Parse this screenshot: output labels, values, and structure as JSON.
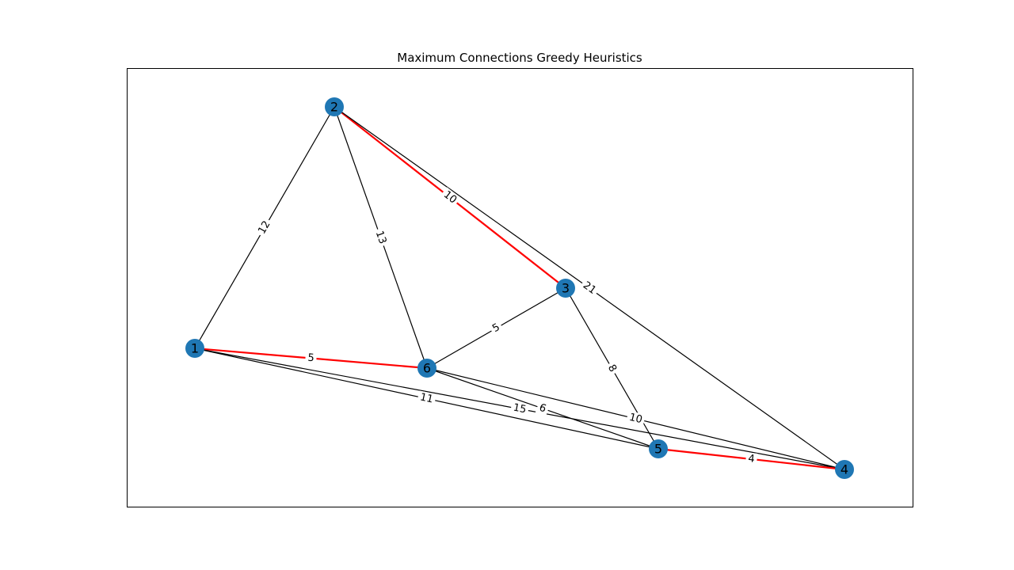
{
  "title": "Maximum Connections Greedy Heuristics",
  "colors": {
    "node_fill": "#1f77b4",
    "edge_default": "#000000",
    "edge_highlight": "#ff0000",
    "frame": "#000000",
    "background": "#ffffff"
  },
  "nodes": [
    {
      "id": "1",
      "label": "1"
    },
    {
      "id": "2",
      "label": "2"
    },
    {
      "id": "3",
      "label": "3"
    },
    {
      "id": "4",
      "label": "4"
    },
    {
      "id": "5",
      "label": "5"
    },
    {
      "id": "6",
      "label": "6"
    }
  ],
  "edges": [
    {
      "source": "1",
      "target": "2",
      "weight": "12",
      "highlighted": false
    },
    {
      "source": "1",
      "target": "6",
      "weight": "5",
      "highlighted": true
    },
    {
      "source": "1",
      "target": "5",
      "weight": "11",
      "highlighted": false
    },
    {
      "source": "1",
      "target": "4",
      "weight": "15",
      "highlighted": false
    },
    {
      "source": "2",
      "target": "6",
      "weight": "13",
      "highlighted": false
    },
    {
      "source": "2",
      "target": "3",
      "weight": "10",
      "highlighted": true
    },
    {
      "source": "2",
      "target": "4",
      "weight": "21",
      "highlighted": false
    },
    {
      "source": "3",
      "target": "6",
      "weight": "5",
      "highlighted": false
    },
    {
      "source": "3",
      "target": "5",
      "weight": "8",
      "highlighted": false
    },
    {
      "source": "6",
      "target": "5",
      "weight": "6",
      "highlighted": false
    },
    {
      "source": "6",
      "target": "4",
      "weight": "10",
      "highlighted": false
    },
    {
      "source": "5",
      "target": "4",
      "weight": "4",
      "highlighted": true
    }
  ]
}
